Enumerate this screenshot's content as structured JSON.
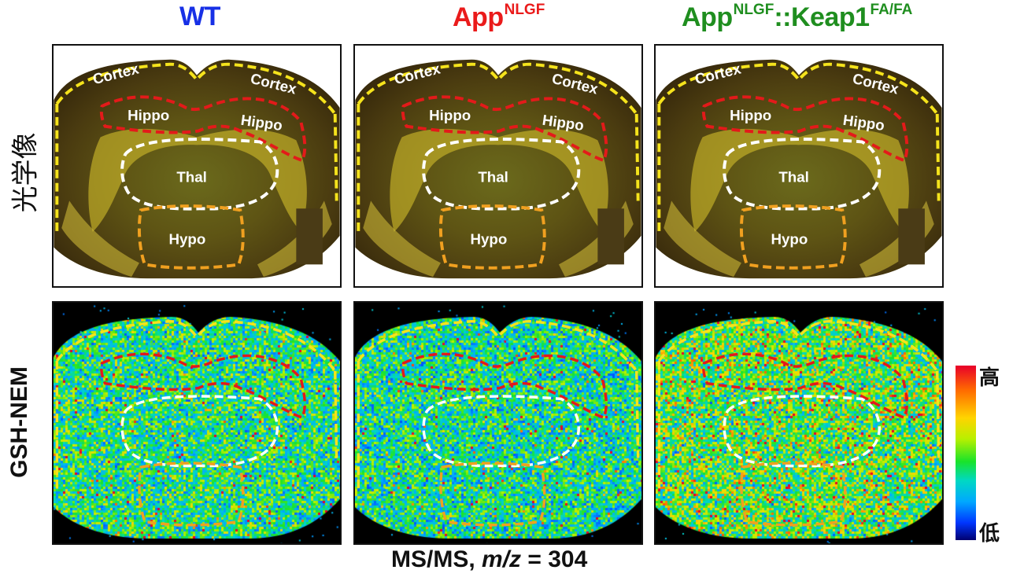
{
  "columns": [
    {
      "name": "wt",
      "label": "WT",
      "sup": "",
      "color": "#1730e6"
    },
    {
      "name": "app-nlgf",
      "label": "App",
      "sup": "NLGF",
      "color": "#ea1b1b"
    },
    {
      "name": "app-nlgf-keap1",
      "label": "App",
      "sup": "NLGF",
      "label2": "::Keap1",
      "sup2": "FA/FA",
      "color": "#1f8e1f"
    }
  ],
  "rows": {
    "optical": "光学像",
    "heat": "GSH-NEM"
  },
  "regions": {
    "cortex": "Cortex",
    "hippo": "Hippo",
    "thal": "Thal",
    "hypo": "Hypo"
  },
  "colorbar": {
    "high": "高",
    "low": "低"
  },
  "caption": {
    "prefix": "MS/MS, ",
    "italic": "m/z",
    "suffix": " = 304"
  },
  "region_colors": {
    "cortex": "#f5e31c",
    "hippo": "#e31a1a",
    "thal": "#ffffff",
    "hypo": "#f0a020"
  }
}
